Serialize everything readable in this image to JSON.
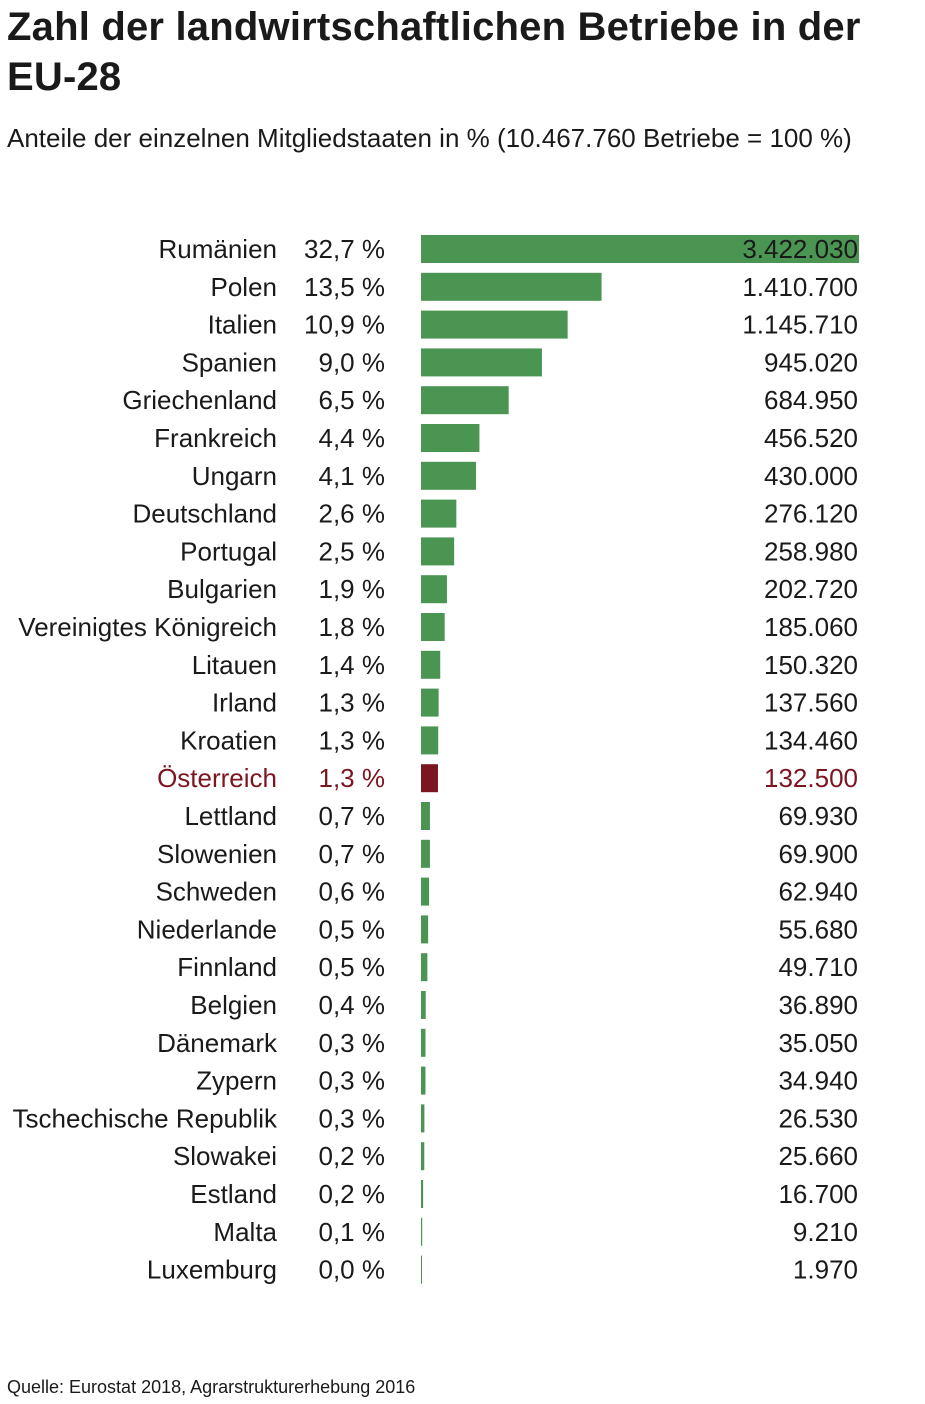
{
  "chart_data": {
    "type": "bar",
    "orientation": "horizontal",
    "title": "Zahl der landwirtschaftlichen Betriebe in der EU-28",
    "subtitle": "Anteile der einzelnen Mitgliedstaaten in % (10.467.760 Betriebe = 100 %)",
    "source": "Quelle: Eurostat 2018, Agrarstrukturerhebung 2016",
    "unit_suffix": "%",
    "colors": {
      "bar": "#4b9553",
      "highlight": "#7b1520",
      "text": "#1a1a1a"
    },
    "xlim": [
      0,
      3422030
    ],
    "categories": [
      "Rumänien",
      "Polen",
      "Italien",
      "Spanien",
      "Griechenland",
      "Frankreich",
      "Ungarn",
      "Deutschland",
      "Portugal",
      "Bulgarien",
      "Vereinigtes Königreich",
      "Litauen",
      "Irland",
      "Kroatien",
      "Österreich",
      "Lettland",
      "Slowenien",
      "Schweden",
      "Niederlande",
      "Finnland",
      "Belgien",
      "Dänemark",
      "Zypern",
      "Tschechische Republik",
      "Slowakei",
      "Estland",
      "Malta",
      "Luxemburg"
    ],
    "values": [
      3422030,
      1410700,
      1145710,
      945020,
      684950,
      456520,
      430000,
      276120,
      258980,
      202720,
      185060,
      150320,
      137560,
      134460,
      132500,
      69930,
      69900,
      62940,
      55680,
      49710,
      36890,
      35050,
      34940,
      26530,
      25660,
      16700,
      9210,
      1970
    ],
    "value_labels": [
      "3.422.030",
      "1.410.700",
      "1.145.710",
      "945.020",
      "684.950",
      "456.520",
      "430.000",
      "276.120",
      "258.980",
      "202.720",
      "185.060",
      "150.320",
      "137.560",
      "134.460",
      "132.500",
      "69.930",
      "69.900",
      "62.940",
      "55.680",
      "49.710",
      "36.890",
      "35.050",
      "34.940",
      "26.530",
      "25.660",
      "16.700",
      "9.210",
      "1.970"
    ],
    "percent_labels": [
      "32,7 %",
      "13,5 %",
      "10,9 %",
      "9,0 %",
      "6,5 %",
      "4,4 %",
      "4,1 %",
      "2,6 %",
      "2,5 %",
      "1,9 %",
      "1,8 %",
      "1,4 %",
      "1,3 %",
      "1,3 %",
      "1,3 %",
      "0,7 %",
      "0,7 %",
      "0,6 %",
      "0,5 %",
      "0,5 %",
      "0,4 %",
      "0,3 %",
      "0,3 %",
      "0,3 %",
      "0,2 %",
      "0,2 %",
      "0,1 %",
      "0,0 %"
    ],
    "highlight": [
      "Österreich"
    ]
  }
}
